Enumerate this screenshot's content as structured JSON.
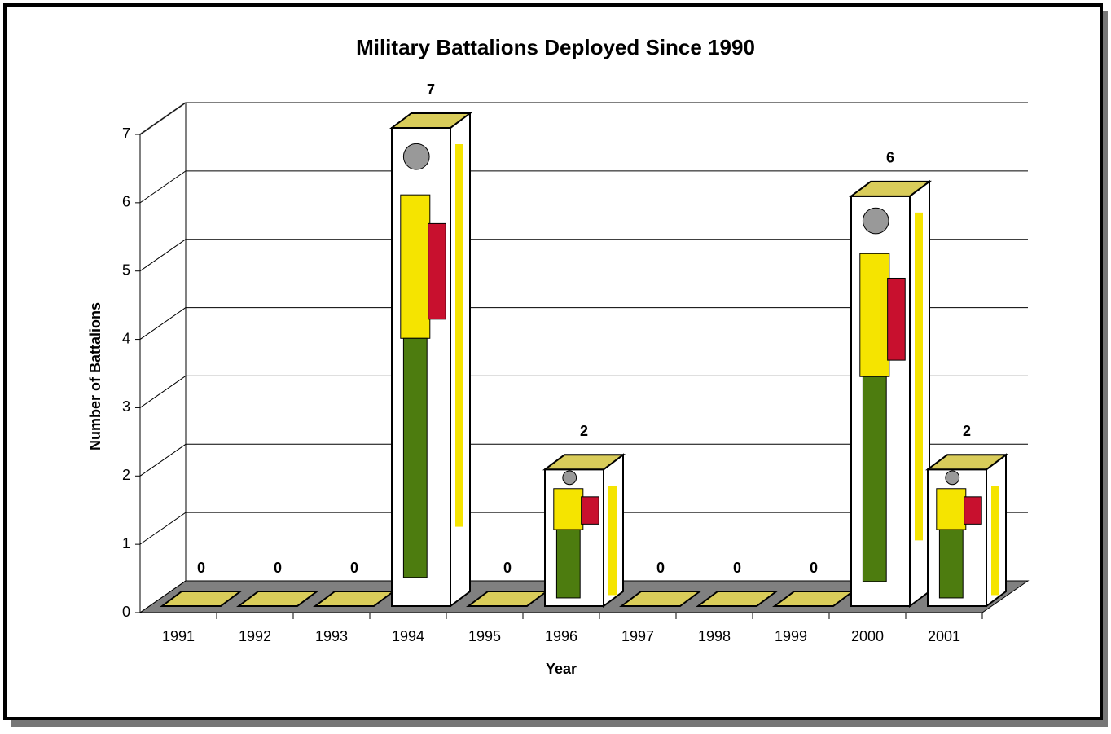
{
  "chart_data": {
    "type": "bar3d",
    "title": "Military Battalions Deployed Since 1990",
    "x_label": "Year",
    "y_label": "Number of Battalions",
    "categories": [
      "1991",
      "1992",
      "1993",
      "1994",
      "1995",
      "1996",
      "1997",
      "1998",
      "1999",
      "2000",
      "2001"
    ],
    "values": [
      0,
      0,
      0,
      7,
      0,
      2,
      0,
      0,
      0,
      6,
      2
    ],
    "ylim": [
      0,
      7
    ],
    "yticks": [
      0,
      1,
      2,
      3,
      4,
      5,
      6,
      7
    ],
    "grid": true
  }
}
